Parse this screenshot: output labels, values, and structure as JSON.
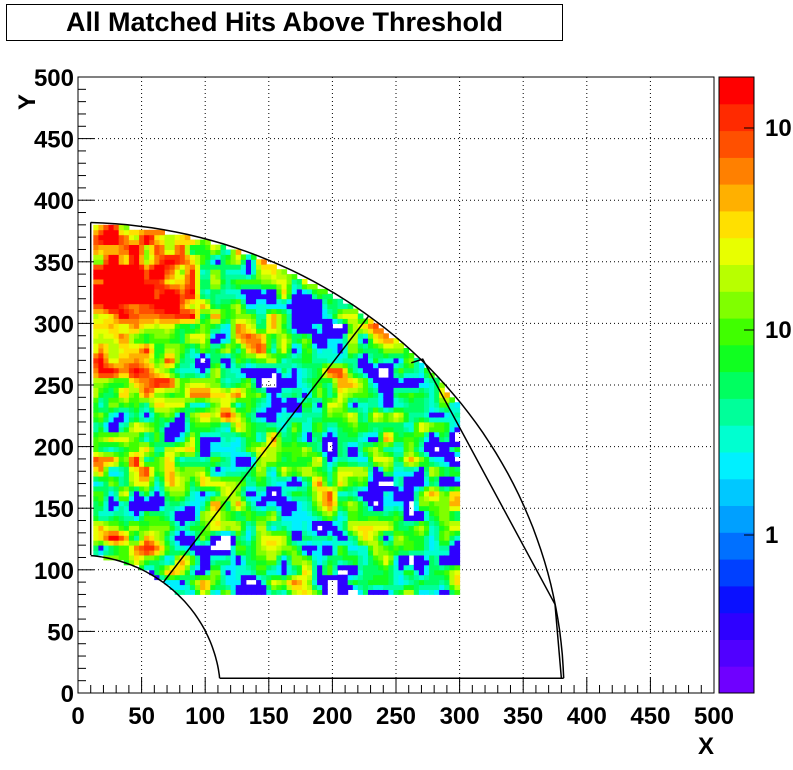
{
  "chart_data": {
    "type": "heatmap",
    "title": "All Matched Hits Above Threshold",
    "xlabel": "X",
    "ylabel": "Y",
    "xlim": [
      0,
      500
    ],
    "ylim": [
      0,
      500
    ],
    "x_ticks": [
      "0",
      "50",
      "100",
      "150",
      "200",
      "250",
      "300",
      "350",
      "400",
      "450",
      "500"
    ],
    "y_ticks": [
      "0",
      "50",
      "100",
      "150",
      "200",
      "250",
      "300",
      "350",
      "400",
      "450",
      "500"
    ],
    "grid": true,
    "colorbar": {
      "scale": "log",
      "labels": [
        "1",
        "10",
        "10"
      ],
      "palette": [
        "#6f00ff",
        "#5000ff",
        "#2e00ff",
        "#0a10ff",
        "#0040ff",
        "#0070ff",
        "#00a0ff",
        "#00c8ff",
        "#00f0ff",
        "#00ffd0",
        "#00ff9a",
        "#00ff60",
        "#10ff20",
        "#40ff00",
        "#80ff00",
        "#b8ff00",
        "#e8ff00",
        "#ffe000",
        "#ffb000",
        "#ff8000",
        "#ff5000",
        "#ff2a00",
        "#ff0000"
      ]
    },
    "outlines": {
      "inner_radius": 112,
      "outer_radius": 382,
      "filled_sector_angle_deg": [
        12,
        90
      ],
      "outer_wedge_end": [
        382,
        12
      ]
    },
    "hot_spots": [
      {
        "x": 45,
        "y": 345,
        "level": "high"
      },
      {
        "x": 40,
        "y": 290,
        "level": "medium"
      }
    ]
  }
}
